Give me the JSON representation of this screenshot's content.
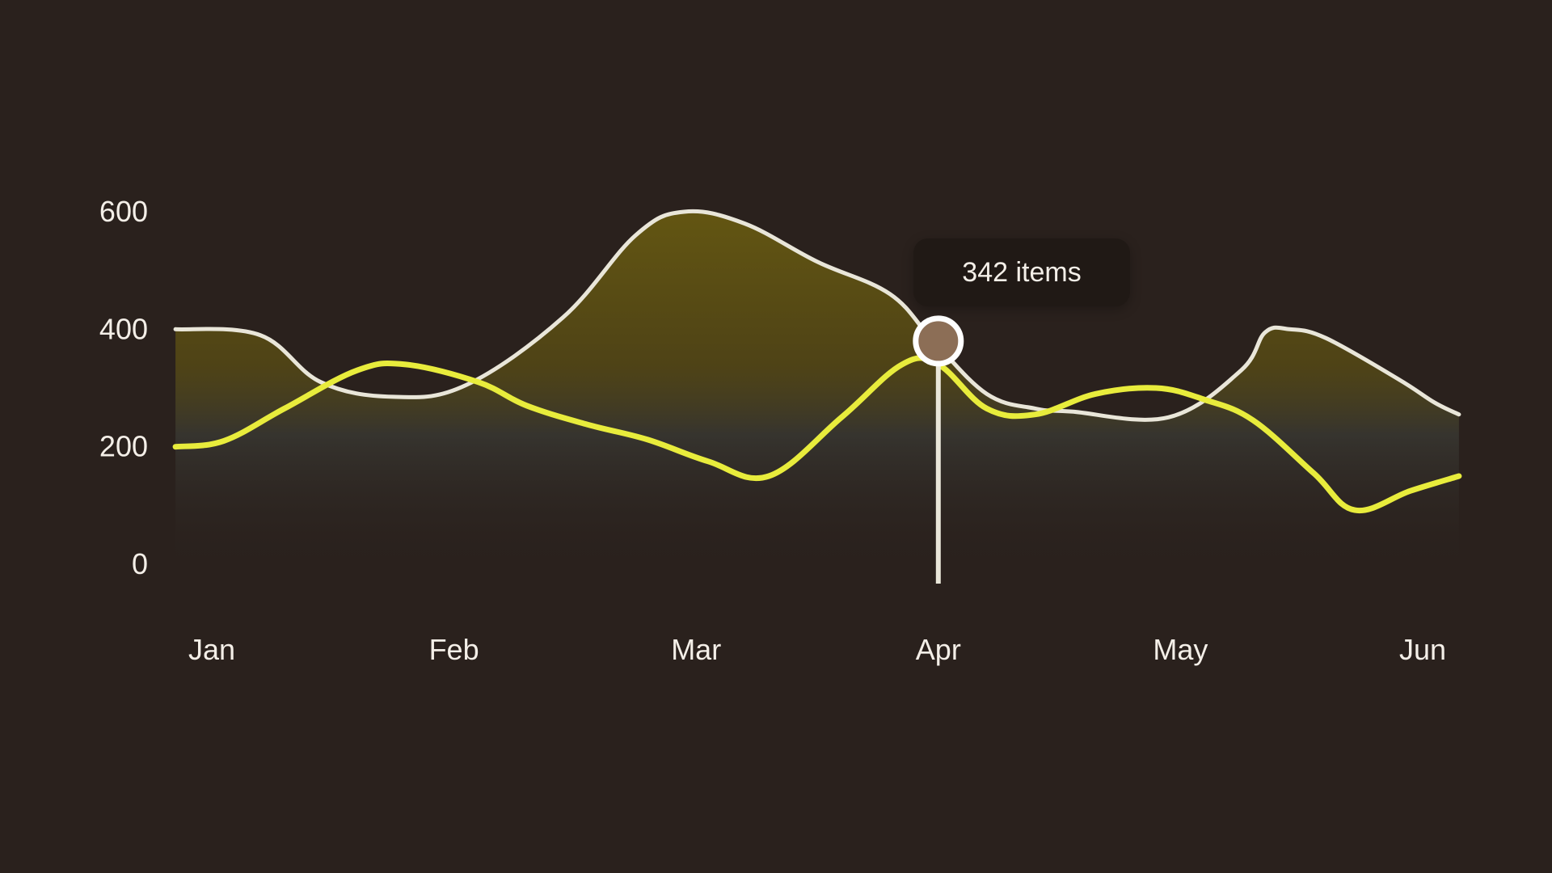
{
  "colors": {
    "background": "#2a211d",
    "series_white": "#e9e6d9",
    "series_yellow": "#e8ec3c",
    "fill_top": "#6d5f10",
    "fill_mid": "#3a3a34",
    "marker_fill": "#8c6e56",
    "marker_stroke": "#ffffff",
    "tooltip_bg": "#201915",
    "text": "#f4efe8"
  },
  "tooltip": {
    "text": "342 items",
    "x": 3.0
  },
  "chart_data": {
    "type": "line",
    "xlim": [
      0,
      5
    ],
    "ylim": [
      0,
      600
    ],
    "yticks": [
      0,
      200,
      400,
      600
    ],
    "ytick_labels": [
      "0",
      "200",
      "400",
      "600"
    ],
    "xtick_positions": [
      0,
      1,
      2,
      3,
      4,
      5
    ],
    "xtick_labels": [
      "Jan",
      "Feb",
      "Mar",
      "Apr",
      "May",
      "Jun"
    ],
    "grid": false,
    "legend": "none",
    "series": [
      {
        "style": "white",
        "points": [
          [
            -0.15,
            400
          ],
          [
            0.2,
            390
          ],
          [
            0.45,
            310
          ],
          [
            0.75,
            285
          ],
          [
            1.05,
            305
          ],
          [
            1.45,
            420
          ],
          [
            1.75,
            560
          ],
          [
            1.95,
            600
          ],
          [
            2.2,
            580
          ],
          [
            2.5,
            515
          ],
          [
            2.8,
            460
          ],
          [
            2.98,
            380
          ],
          [
            3.2,
            290
          ],
          [
            3.4,
            265
          ],
          [
            3.55,
            260
          ],
          [
            3.95,
            250
          ],
          [
            4.25,
            330
          ],
          [
            4.35,
            395
          ],
          [
            4.45,
            400
          ],
          [
            4.6,
            385
          ],
          [
            4.9,
            315
          ],
          [
            5.05,
            275
          ],
          [
            5.15,
            255
          ]
        ]
      },
      {
        "style": "yellow",
        "points": [
          [
            -0.15,
            200
          ],
          [
            0.05,
            210
          ],
          [
            0.3,
            265
          ],
          [
            0.6,
            330
          ],
          [
            0.8,
            340
          ],
          [
            1.1,
            310
          ],
          [
            1.3,
            270
          ],
          [
            1.55,
            238
          ],
          [
            1.8,
            212
          ],
          [
            2.05,
            175
          ],
          [
            2.3,
            150
          ],
          [
            2.6,
            250
          ],
          [
            2.85,
            340
          ],
          [
            3.0,
            340
          ],
          [
            3.2,
            265
          ],
          [
            3.4,
            255
          ],
          [
            3.65,
            290
          ],
          [
            3.9,
            300
          ],
          [
            4.1,
            280
          ],
          [
            4.3,
            245
          ],
          [
            4.55,
            155
          ],
          [
            4.72,
            92
          ],
          [
            4.95,
            125
          ],
          [
            5.15,
            150
          ]
        ]
      }
    ]
  }
}
